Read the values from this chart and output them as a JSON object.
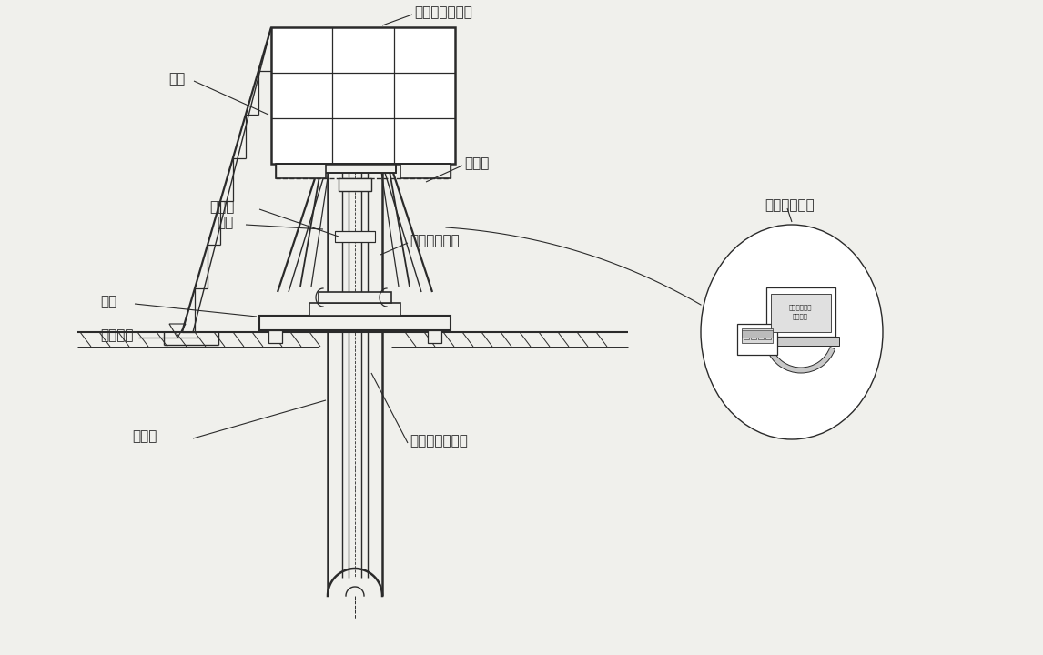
{
  "bg_color": "#f0f0ec",
  "line_color": "#2a2a2a",
  "labels": {
    "concrete_platform": "混凝土施工平台",
    "mould": "模具",
    "diagonal_rod": "斜拉杆",
    "frame": "基架",
    "data_system": "数据分析系统",
    "base": "基座",
    "pile_top_elevation": "桩顶标高",
    "connecting_rod": "连接杆",
    "auto_center_screw": "自动对中螺杆",
    "steel_pipe_pile": "钢管桩",
    "measurement_tube": "测直管及传感器",
    "screen_text1": "钢立柱垂直度",
    "screen_text2": "调整系统"
  },
  "font_size": 11
}
